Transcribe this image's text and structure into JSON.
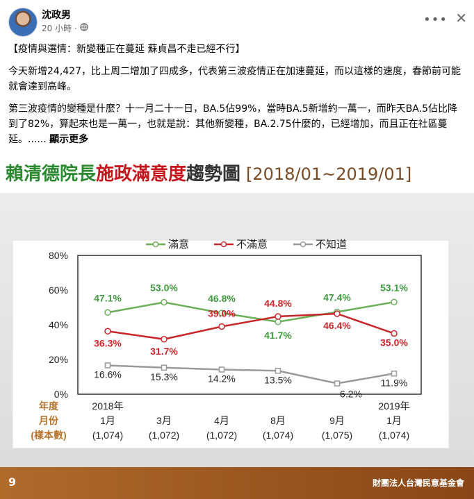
{
  "post": {
    "author": "沈政男",
    "time": "20 小時",
    "title_line": "【疫情與選情：新變種正在蔓延 蘇貞昌不走已經不行】",
    "para1": "今天新增24,427，比上周二增加了四成多，代表第三波疫情正在加速蔓延，而以這樣的速度，春節前可能就會達到高峰。",
    "para2": "第三波疫情的變種是什麼？十一月二十一日，BA.5佔99%，當時BA.5新增約一萬一，而昨天BA.5佔比降到了82%，算起來也是一萬一，也就是說：其他新變種，BA.2.75什麼的，已經增加，而且正在社區蔓延。......",
    "see_more": "顯示更多",
    "more_icon": "more-horizontal-icon",
    "close_icon": "close-icon",
    "privacy_icon": "globe-icon"
  },
  "figure": {
    "title_part1": "賴清德院長",
    "title_part2": "施政滿意度",
    "title_part3": "趨勢圖",
    "title_range": "[2018/01~2019/01]",
    "footer_page": "9",
    "footer_org": "財團法人台灣民意基金會"
  },
  "chart_data": {
    "type": "line",
    "categories": [
      "2018年 1月 (1,074)",
      "3月 (1,072)",
      "4月 (1,072)",
      "8月 (1,074)",
      "9月 (1,075)",
      "2019年 1月 (1,074)"
    ],
    "x_label_lines": [
      [
        "2018年",
        "1月",
        "(1,074)"
      ],
      [
        "",
        "3月",
        "(1,072)"
      ],
      [
        "",
        "4月",
        "(1,072)"
      ],
      [
        "",
        "8月",
        "(1,074)"
      ],
      [
        "",
        "9月",
        "(1,075)"
      ],
      [
        "2019年",
        "1月",
        "(1,074)"
      ]
    ],
    "row_labels": [
      "年度",
      "月份",
      "(樣本數)"
    ],
    "yticks": [
      "0%",
      "20%",
      "40%",
      "60%",
      "80%"
    ],
    "ylim": [
      0,
      80
    ],
    "series": [
      {
        "name": "滿意",
        "color": "#6cae5a",
        "values": [
          47.1,
          53.0,
          46.8,
          41.7,
          47.4,
          53.1
        ],
        "labels": [
          "47.1%",
          "53.0%",
          "46.8%",
          "41.7%",
          "47.4%",
          "53.1%"
        ],
        "label_color": "#3f9a3f"
      },
      {
        "name": "不滿意",
        "color": "#c8262b",
        "values": [
          36.3,
          31.7,
          39.0,
          44.8,
          46.4,
          35.0
        ],
        "labels": [
          "36.3%",
          "31.7%",
          "39.0%",
          "44.8%",
          "46.4%",
          "35.0%"
        ],
        "label_color": "#c8262b"
      },
      {
        "name": "不知道",
        "color": "#999999",
        "values": [
          16.6,
          15.3,
          14.2,
          13.5,
          6.2,
          11.9
        ],
        "labels": [
          "16.6%",
          "15.3%",
          "14.2%",
          "13.5%",
          "6.2%",
          "11.9%"
        ],
        "label_color": "#222222"
      }
    ],
    "legend_position": "top-center",
    "grid": false
  }
}
